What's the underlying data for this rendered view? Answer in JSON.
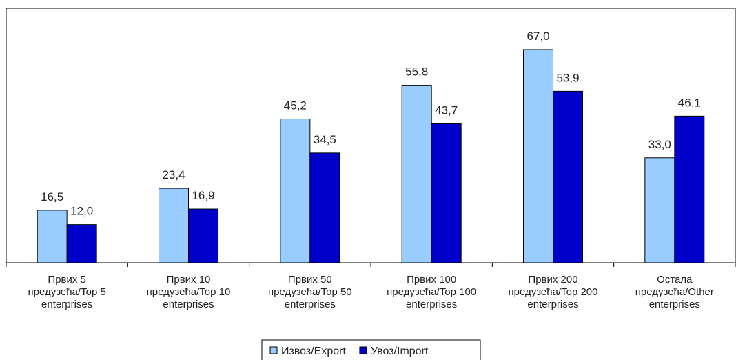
{
  "chart_data": {
    "type": "bar",
    "categories": [
      "Првих 5 предузећа/Top 5 enterprises",
      "Првих 10 предузећа/Top 10 enterprises",
      "Првих 50 предузећа/Top 50 enterprises",
      "Првих 100 предузећа/Top 100 enterprises",
      "Првих 200 предузећа/Top 200 enterprises",
      "Остала предузећа/Other enterprises"
    ],
    "series": [
      {
        "name": "Извоз/Export",
        "color": "#99ccff",
        "values": [
          16.5,
          23.4,
          45.2,
          55.8,
          67.0,
          33.0
        ],
        "value_labels": [
          "16,5",
          "23,4",
          "45,2",
          "55,8",
          "67,0",
          "33,0"
        ]
      },
      {
        "name": "Увоз/Import",
        "color": "#0000cc",
        "values": [
          12.0,
          16.9,
          34.5,
          43.7,
          53.9,
          46.1
        ],
        "value_labels": [
          "12,0",
          "16,9",
          "34,5",
          "43,7",
          "53,9",
          "46,1"
        ]
      }
    ],
    "ylim": [
      0,
      80
    ],
    "legend": "bottom"
  }
}
